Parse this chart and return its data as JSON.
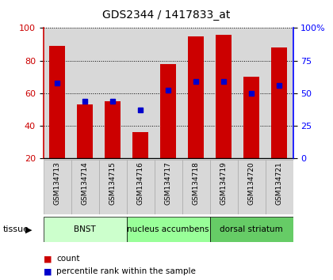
{
  "title": "GDS2344 / 1417833_at",
  "samples": [
    "GSM134713",
    "GSM134714",
    "GSM134715",
    "GSM134716",
    "GSM134717",
    "GSM134718",
    "GSM134719",
    "GSM134720",
    "GSM134721"
  ],
  "count_values": [
    89,
    53,
    55,
    36,
    78,
    95,
    96,
    70,
    88
  ],
  "percentile_values": [
    58,
    44,
    44,
    37,
    52,
    59,
    59,
    50,
    56
  ],
  "bar_color": "#cc0000",
  "dot_color": "#0000cc",
  "ylim_left": [
    20,
    100
  ],
  "ylim_right": [
    0,
    100
  ],
  "yticks_left": [
    20,
    40,
    60,
    80,
    100
  ],
  "yticks_right": [
    0,
    25,
    50,
    75,
    100
  ],
  "yticklabels_right": [
    "0",
    "25",
    "50",
    "75",
    "100%"
  ],
  "tissue_groups": [
    {
      "label": "BNST",
      "start": 0,
      "end": 3,
      "color": "#ccffcc"
    },
    {
      "label": "nucleus accumbens",
      "start": 3,
      "end": 6,
      "color": "#99ff99"
    },
    {
      "label": "dorsal striatum",
      "start": 6,
      "end": 9,
      "color": "#66cc66"
    }
  ],
  "legend_count_label": "count",
  "legend_pct_label": "percentile rank within the sample",
  "tissue_label": "tissue",
  "bar_bg": "#d8d8d8",
  "bar_width": 0.55,
  "bar_gap": 0.5
}
